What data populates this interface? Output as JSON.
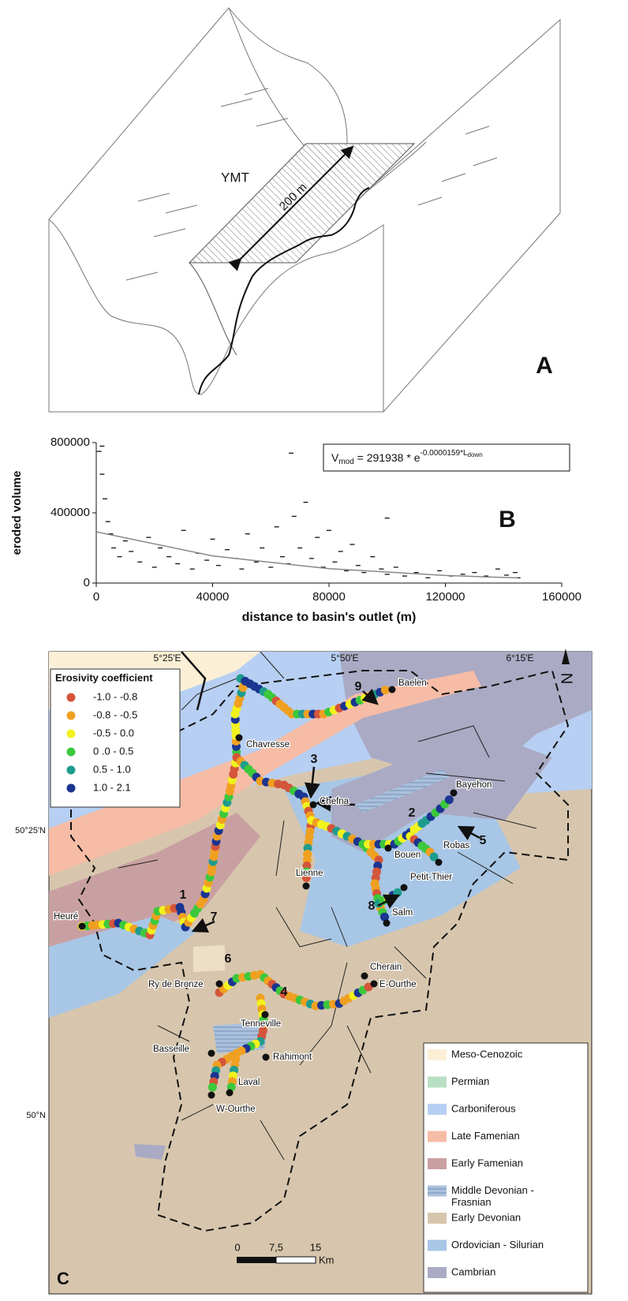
{
  "panel_a": {
    "label": "YMT",
    "dimension": "200 m",
    "panel": "A"
  },
  "chart_data": {
    "type": "scatter",
    "panel": "B",
    "equation": [
      "V",
      "mod",
      " = 291938 * e",
      "-0.0000159*L",
      "down"
    ],
    "x_label": "distance to basin's outlet (m)",
    "y_label": "eroded volume",
    "x": [
      1000,
      2000,
      3000,
      4000,
      5000,
      6000,
      8000,
      10000,
      12000,
      15000,
      18000,
      20000,
      22000,
      25000,
      28000,
      30000,
      33000,
      35000,
      38000,
      40000,
      42000,
      45000,
      48000,
      50000,
      52000,
      55000,
      57000,
      60000,
      62000,
      64000,
      66000,
      68000,
      70000,
      72000,
      74000,
      76000,
      78000,
      80000,
      82000,
      84000,
      86000,
      88000,
      90000,
      92000,
      95000,
      98000,
      100000,
      103000,
      106000,
      110000,
      114000,
      118000,
      122000,
      126000,
      130000,
      134000,
      138000,
      141000,
      144000,
      145000,
      2000,
      67000,
      100000
    ],
    "values": [
      750000,
      620000,
      480000,
      350000,
      280000,
      200000,
      150000,
      240000,
      180000,
      120000,
      260000,
      90000,
      200000,
      150000,
      110000,
      300000,
      80000,
      170000,
      130000,
      250000,
      100000,
      190000,
      140000,
      80000,
      280000,
      120000,
      200000,
      90000,
      320000,
      150000,
      110000,
      380000,
      200000,
      460000,
      140000,
      260000,
      90000,
      300000,
      120000,
      180000,
      70000,
      220000,
      100000,
      60000,
      150000,
      80000,
      50000,
      90000,
      40000,
      60000,
      30000,
      70000,
      40000,
      50000,
      60000,
      40000,
      80000,
      45000,
      60000,
      30000,
      780000,
      740000,
      370000
    ],
    "fit": {
      "x": [
        0,
        40000,
        80000,
        120000,
        145000
      ],
      "values": [
        291938,
        154550,
        81830,
        43320,
        29100
      ]
    },
    "color": "#111",
    "xlim": [
      0,
      160000
    ],
    "ylim": [
      0,
      800000
    ],
    "xticks": [
      0,
      40000,
      80000,
      120000,
      160000
    ],
    "yticks": [
      0,
      400000,
      800000
    ]
  },
  "panel_c": {
    "panel": "C",
    "lon_labels": [
      "5°25'E",
      "5°50'E",
      "6°15'E"
    ],
    "lat_labels": [
      "50°25'N",
      "50°N"
    ],
    "north": "N",
    "erosivity": {
      "title": "Erosivity coefficient",
      "classes": [
        {
          "label": "-1.0 - -0.8",
          "color": "#d4553a"
        },
        {
          "label": "-0.8 - -0.5",
          "color": "#f0a020"
        },
        {
          "label": "-0.5 - 0.0",
          "color": "#f2f21e"
        },
        {
          "label": "0 .0 - 0.5",
          "color": "#3cc83c"
        },
        {
          "label": "0.5 - 1.0",
          "color": "#1f9c8e"
        },
        {
          "label": "1.0 - 2.1",
          "color": "#1b3590"
        }
      ]
    },
    "geology": [
      {
        "label": [
          "Meso-Cenozoic"
        ],
        "color": "#fbefd6"
      },
      {
        "label": [
          "Permian"
        ],
        "color": "#b8dfc4"
      },
      {
        "label": [
          "Carboniferous"
        ],
        "color": "#b7cff2"
      },
      {
        "label": [
          "Late Famenian"
        ],
        "color": "#f6bca6"
      },
      {
        "label": [
          "Early Famenian"
        ],
        "color": "#c9a0a2"
      },
      {
        "label": [
          "Middle Devonian -",
          "Frasnian"
        ],
        "color": "#a9c1de"
      },
      {
        "label": [
          "Early Devonian"
        ],
        "color": "#d7c6ad"
      },
      {
        "label": [
          "Ordovician - Silurian"
        ],
        "color": "#a8c6e6"
      },
      {
        "label": [
          "Cambrian"
        ],
        "color": "#aaaac4"
      }
    ],
    "places": [
      "Baelen",
      "Chavresse",
      "Chefna",
      "Bayehon",
      "Robas",
      "Bouen",
      "Lienne",
      "Petit-Thier",
      "Salm",
      "Heuré",
      "Ry de Bronze",
      "Cherain",
      "E-Ourthe",
      "Tenneville",
      "Basseille",
      "Rahimont",
      "Laval",
      "W-Ourthe"
    ],
    "sites": [
      "9",
      "3",
      "2",
      "5",
      "1",
      "7",
      "6",
      "4",
      "8"
    ],
    "scale": [
      "0",
      "7,5",
      "15",
      "Km"
    ]
  }
}
